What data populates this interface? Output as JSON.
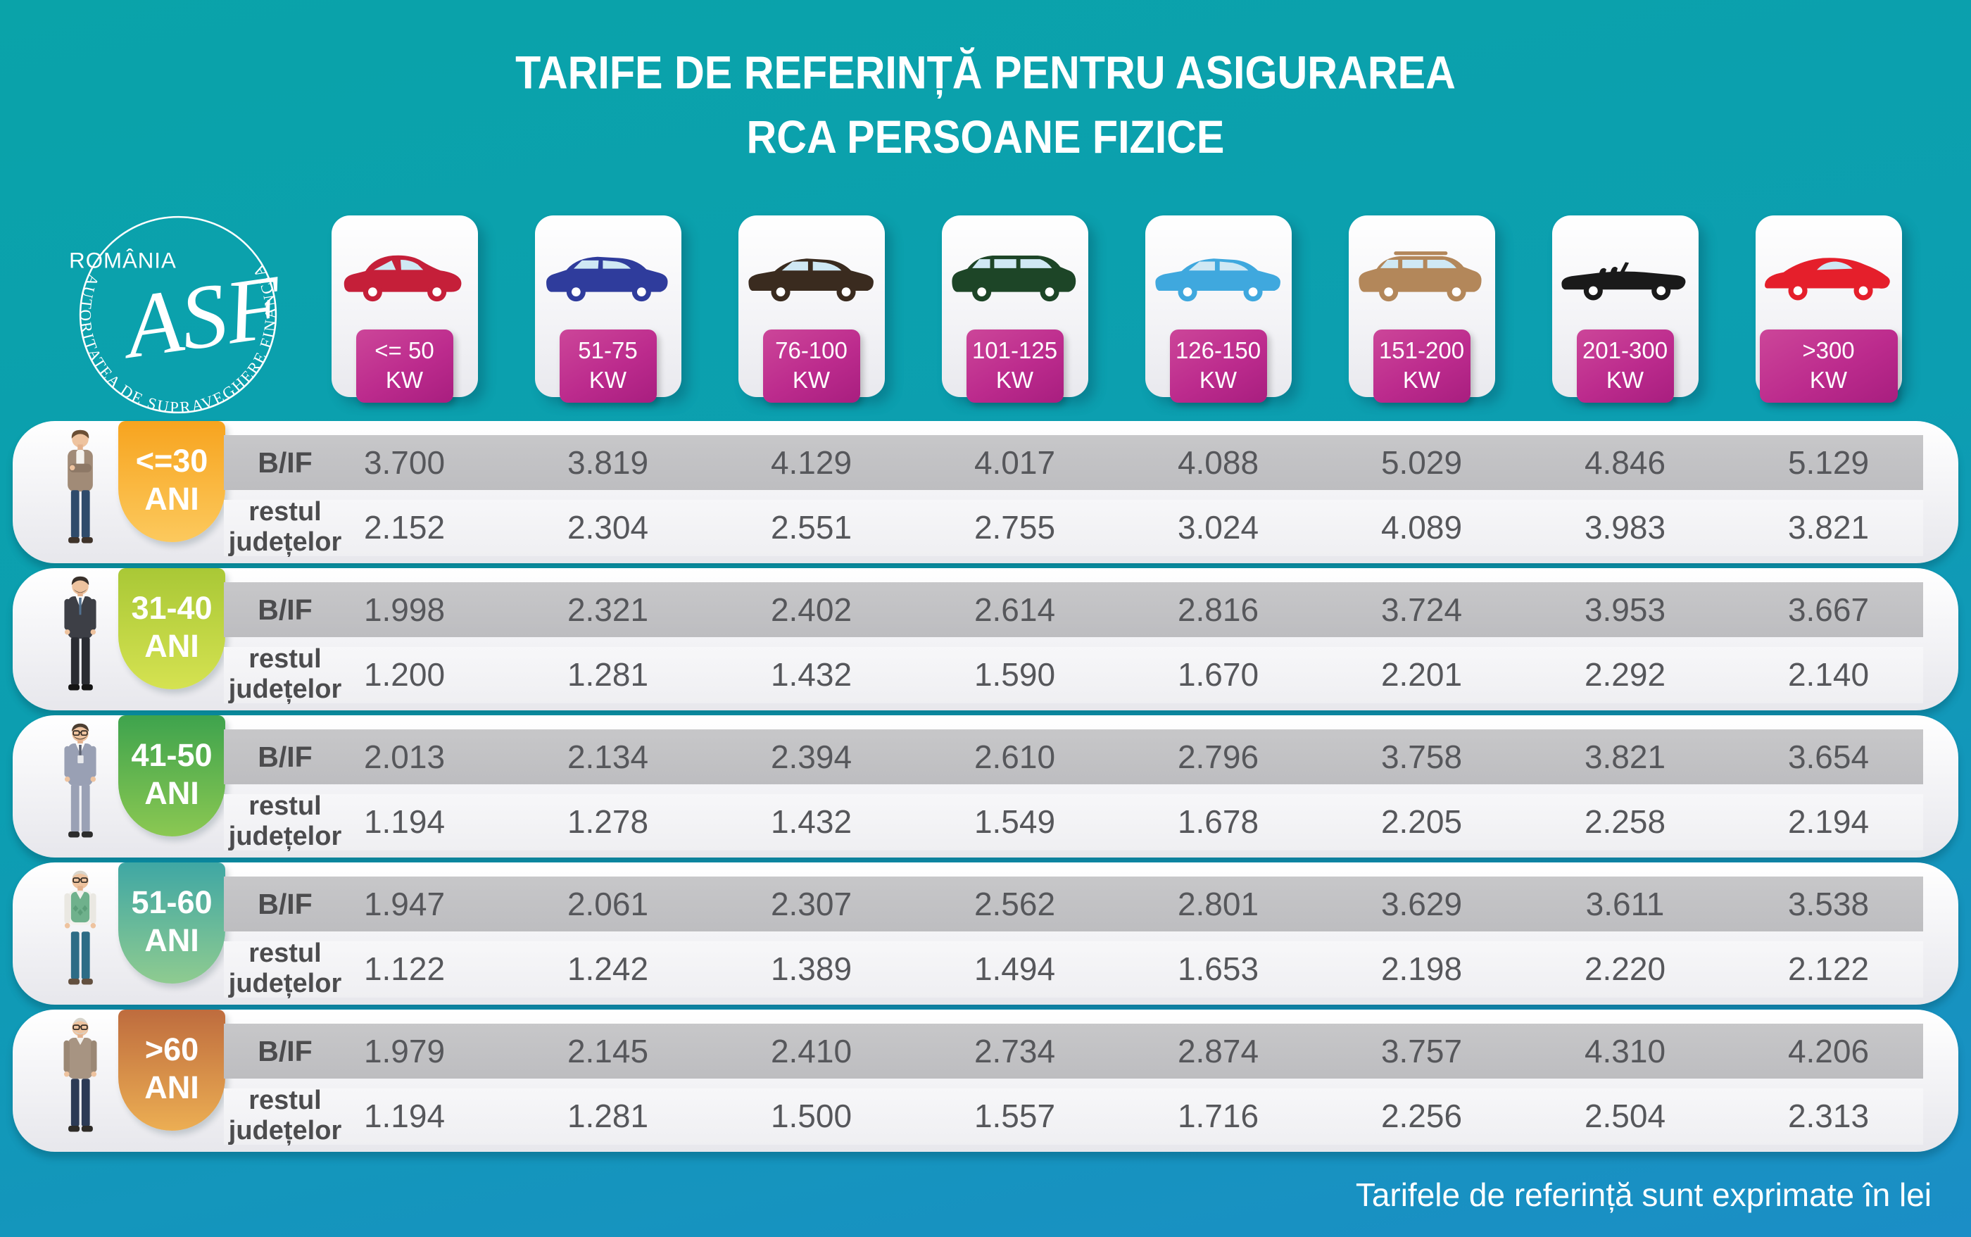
{
  "title": {
    "line1": "TARIFE DE REFERINȚĂ PENTRU ASIGURAREA",
    "line2": "RCA PERSOANE FIZICE"
  },
  "logo": {
    "country": "ROMÂNIA",
    "monogram": "ASF",
    "authority": "AUTORITATEA DE SUPRAVEGHERE FINANCIARĂ"
  },
  "footer": {
    "note": "Tarifele de referință sunt exprimate în lei"
  },
  "row_labels": {
    "bif": "B/IF",
    "rest": [
      "restul",
      "județelor"
    ]
  },
  "columns": [
    {
      "power": "<= 50",
      "unit": "KW",
      "car": "city-hatchback",
      "color": "#c51f39"
    },
    {
      "power": "51-75",
      "unit": "KW",
      "car": "crossover-suv",
      "color": "#2f3c9c"
    },
    {
      "power": "76-100",
      "unit": "KW",
      "car": "sedan",
      "color": "#3a2b1f"
    },
    {
      "power": "101-125",
      "unit": "KW",
      "car": "minivan",
      "color": "#1d4527"
    },
    {
      "power": "126-150",
      "unit": "KW",
      "car": "sedan",
      "color": "#3fa8de"
    },
    {
      "power": "151-200",
      "unit": "KW",
      "car": "large-suv",
      "color": "#b3875a"
    },
    {
      "power": "201-300",
      "unit": "KW",
      "car": "convertible",
      "color": "#1a1a1a"
    },
    {
      "power": ">300",
      "unit": "KW",
      "car": "sports-car",
      "color": "#e51f2b"
    }
  ],
  "badge_accent": "#bc2b8d",
  "age_groups": [
    {
      "label": "<=30",
      "suffix": "ANI",
      "person": "young-man",
      "badge_from": "#f7a41f",
      "badge_to": "#fcc95d",
      "bif": [
        "3.700",
        "3.819",
        "4.129",
        "4.017",
        "4.088",
        "5.029",
        "4.846",
        "5.129"
      ],
      "rest": [
        "2.152",
        "2.304",
        "2.551",
        "2.755",
        "3.024",
        "4.089",
        "3.983",
        "3.821"
      ]
    },
    {
      "label": "31-40",
      "suffix": "ANI",
      "person": "adult-man-suit",
      "badge_from": "#a9c836",
      "badge_to": "#d5e251",
      "bif": [
        "1.998",
        "2.321",
        "2.402",
        "2.614",
        "2.816",
        "3.724",
        "3.953",
        "3.667"
      ],
      "rest": [
        "1.200",
        "1.281",
        "1.432",
        "1.590",
        "1.670",
        "2.201",
        "2.292",
        "2.140"
      ]
    },
    {
      "label": "41-50",
      "suffix": "ANI",
      "person": "middle-aged-man-glasses",
      "badge_from": "#3ea34d",
      "badge_to": "#8bc852",
      "bif": [
        "2.013",
        "2.134",
        "2.394",
        "2.610",
        "2.796",
        "3.758",
        "3.821",
        "3.654"
      ],
      "rest": [
        "1.194",
        "1.278",
        "1.432",
        "1.549",
        "1.678",
        "2.205",
        "2.258",
        "2.194"
      ]
    },
    {
      "label": "51-60",
      "suffix": "ANI",
      "person": "senior-man-vest",
      "badge_from": "#3fa7a4",
      "badge_to": "#8fcb90",
      "bif": [
        "1.947",
        "2.061",
        "2.307",
        "2.562",
        "2.801",
        "3.629",
        "3.611",
        "3.538"
      ],
      "rest": [
        "1.122",
        "1.242",
        "1.389",
        "1.494",
        "1.653",
        "2.198",
        "2.220",
        "2.122"
      ]
    },
    {
      "label": ">60",
      "suffix": "ANI",
      "person": "elderly-man",
      "badge_from": "#be6c3e",
      "badge_to": "#ecae53",
      "bif": [
        "1.979",
        "2.145",
        "2.410",
        "2.734",
        "2.874",
        "3.757",
        "4.310",
        "4.206"
      ],
      "rest": [
        "1.194",
        "1.281",
        "1.500",
        "1.557",
        "1.716",
        "2.256",
        "2.504",
        "2.313"
      ]
    }
  ],
  "chart_data": {
    "type": "table",
    "title": "TARIFE DE REFERINȚĂ PENTRU ASIGURAREA RCA PERSOANE FIZICE",
    "unit": "lei",
    "columns": [
      "<= 50 KW",
      "51-75 KW",
      "76-100 KW",
      "101-125 KW",
      "126-150 KW",
      "151-200 KW",
      "201-300 KW",
      ">300 KW"
    ],
    "rows": [
      {
        "age": "<=30 ANI",
        "region": "B/IF",
        "values": [
          3700,
          3819,
          4129,
          4017,
          4088,
          5029,
          4846,
          5129
        ]
      },
      {
        "age": "<=30 ANI",
        "region": "restul județelor",
        "values": [
          2152,
          2304,
          2551,
          2755,
          3024,
          4089,
          3983,
          3821
        ]
      },
      {
        "age": "31-40 ANI",
        "region": "B/IF",
        "values": [
          1998,
          2321,
          2402,
          2614,
          2816,
          3724,
          3953,
          3667
        ]
      },
      {
        "age": "31-40 ANI",
        "region": "restul județelor",
        "values": [
          1200,
          1281,
          1432,
          1590,
          1670,
          2201,
          2292,
          2140
        ]
      },
      {
        "age": "41-50 ANI",
        "region": "B/IF",
        "values": [
          2013,
          2134,
          2394,
          2610,
          2796,
          3758,
          3821,
          3654
        ]
      },
      {
        "age": "41-50 ANI",
        "region": "restul județelor",
        "values": [
          1194,
          1278,
          1432,
          1549,
          1678,
          2205,
          2258,
          2194
        ]
      },
      {
        "age": "51-60 ANI",
        "region": "B/IF",
        "values": [
          1947,
          2061,
          2307,
          2562,
          2801,
          3629,
          3611,
          3538
        ]
      },
      {
        "age": "51-60 ANI",
        "region": "restul județelor",
        "values": [
          1122,
          1242,
          1389,
          1494,
          1653,
          2198,
          2220,
          2122
        ]
      },
      {
        "age": ">60 ANI",
        "region": "B/IF",
        "values": [
          1979,
          2145,
          2410,
          2734,
          2874,
          3757,
          4310,
          4206
        ]
      },
      {
        "age": ">60 ANI",
        "region": "restul județelor",
        "values": [
          1194,
          1281,
          1500,
          1557,
          1716,
          2256,
          2504,
          2313
        ]
      }
    ],
    "note": "Tarifele de referință sunt exprimate în lei"
  }
}
